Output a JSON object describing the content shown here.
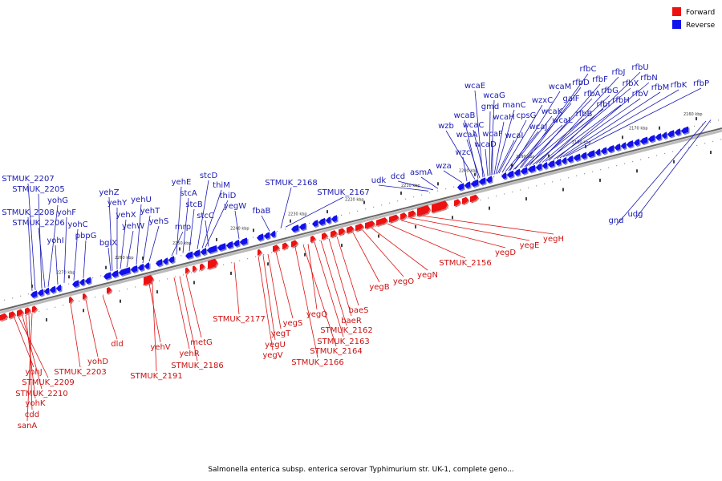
{
  "caption": "Salmonella enterica subsp. enterica serovar Typhimurium str. UK-1, complete geno...",
  "legend": [
    {
      "label": "Forward",
      "color": "#ee1111"
    },
    {
      "label": "Reverse",
      "color": "#1111ee"
    }
  ],
  "ticks": [
    "2270 kbp",
    "2260 kbp",
    "2250 kbp",
    "2240 kbp",
    "2230 kbp",
    "2220 kbp",
    "2210 kbp",
    "2200 kbp",
    "2190 kbp",
    "2180 kbp",
    "2170 kbp",
    "2160 kbp"
  ],
  "forward_labels": [
    "yohJ",
    "STMUK_2209",
    "STMUK_2210",
    "yohK",
    "cdd",
    "sanA",
    "STMUK_2203",
    "yohD",
    "dld",
    "yehV",
    "STMUK_2191",
    "yehR",
    "STMUK_2186",
    "metG",
    "STMUK_2177",
    "yegV",
    "yegU",
    "yegT",
    "yegS",
    "STMUK_2166",
    "STMUK_2164",
    "yegQ",
    "STMUK_2163",
    "STMUK_2162",
    "baeR",
    "baeS",
    "yegB",
    "yegO",
    "yegN",
    "STMUK_2156",
    "yegD",
    "yegE",
    "yegH"
  ],
  "reverse_labels": [
    "STMUK_2207",
    "STMUK_2205",
    "yohG",
    "STMUK_2208",
    "yohF",
    "STMUK_2206",
    "yohC",
    "yohI",
    "pbpG",
    "bglX",
    "yehZ",
    "yehY",
    "yehX",
    "yehW",
    "yehU",
    "yehT",
    "yehS",
    "mrp",
    "yehE",
    "stcA",
    "stcB",
    "stcD",
    "thiM",
    "thiD",
    "stcC",
    "yegW",
    "fbaB",
    "STMUK_2168",
    "STMUK_2167",
    "udk",
    "dcd",
    "asmA",
    "wza",
    "wzc",
    "wzb",
    "wcaB",
    "wcaA",
    "wcaE",
    "wcaC",
    "wcaD",
    "gmd",
    "wcaG",
    "wcaF",
    "wcaH",
    "manC",
    "wcaI",
    "cpsG",
    "wzxC",
    "wcaJ",
    "wcaK",
    "wcaL",
    "wcaM",
    "galF",
    "rfbC",
    "rfbD",
    "rfbA",
    "rfbB",
    "rfbF",
    "rfbI",
    "rfbG",
    "rfbJ",
    "rfbX",
    "rfbH",
    "rfbU",
    "rfbV",
    "rfbN",
    "rfbM",
    "rfbK",
    "rfbP",
    "gnd",
    "udg"
  ]
}
